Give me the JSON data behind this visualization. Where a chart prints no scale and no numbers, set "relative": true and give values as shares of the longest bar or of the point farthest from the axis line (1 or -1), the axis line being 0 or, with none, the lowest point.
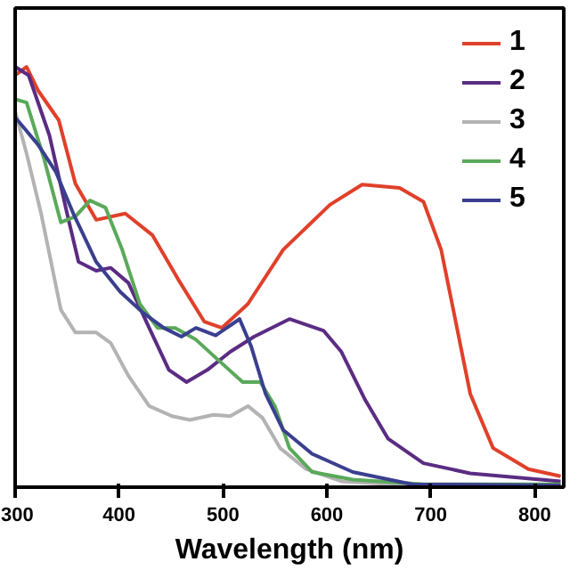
{
  "chart_data": {
    "type": "line",
    "xlabel": "Wavelength (nm)",
    "relative": true,
    "xlim": [
      300,
      828
    ],
    "xticks": [
      300,
      400,
      500,
      600,
      700,
      800
    ],
    "legend": "top right",
    "line_style": "solid",
    "grid": false,
    "series": [
      {
        "name": "1",
        "color": "#e0402a",
        "x": [
          300,
          311,
          322,
          342,
          358,
          378,
          406,
          432,
          457,
          482,
          499,
          524,
          558,
          603,
          634,
          670,
          693,
          710,
          724,
          738,
          760,
          794,
          825
        ],
        "values": [
          0.98,
          1.0,
          0.944,
          0.873,
          0.722,
          0.636,
          0.651,
          0.6,
          0.494,
          0.394,
          0.379,
          0.436,
          0.565,
          0.672,
          0.72,
          0.712,
          0.679,
          0.565,
          0.394,
          0.222,
          0.093,
          0.043,
          0.026
        ]
      },
      {
        "name": "2",
        "color": "#5b2c83",
        "x": [
          300,
          313,
          333,
          350,
          361,
          378,
          392,
          409,
          429,
          448,
          465,
          485,
          507,
          530,
          564,
          597,
          614,
          637,
          659,
          693,
          738,
          825
        ],
        "values": [
          1.0,
          0.98,
          0.837,
          0.651,
          0.536,
          0.515,
          0.522,
          0.486,
          0.379,
          0.279,
          0.25,
          0.279,
          0.322,
          0.358,
          0.4,
          0.372,
          0.322,
          0.207,
          0.115,
          0.057,
          0.033,
          0.014
        ]
      },
      {
        "name": "3",
        "color": "#b3b3b3",
        "x": [
          300,
          311,
          325,
          344,
          358,
          378,
          392,
          409,
          429,
          451,
          468,
          491,
          507,
          524,
          538,
          555,
          580,
          614,
          681,
          825
        ],
        "values": [
          0.894,
          0.794,
          0.651,
          0.422,
          0.368,
          0.368,
          0.343,
          0.265,
          0.193,
          0.169,
          0.16,
          0.172,
          0.169,
          0.193,
          0.165,
          0.093,
          0.043,
          0.014,
          0.004,
          0.0
        ]
      },
      {
        "name": "4",
        "color": "#5aa95a",
        "x": [
          300,
          311,
          328,
          344,
          358,
          372,
          387,
          403,
          420,
          437,
          454,
          474,
          493,
          519,
          536,
          550,
          564,
          586,
          625,
          693,
          825
        ],
        "values": [
          0.923,
          0.915,
          0.78,
          0.63,
          0.644,
          0.682,
          0.665,
          0.565,
          0.436,
          0.379,
          0.379,
          0.351,
          0.308,
          0.25,
          0.25,
          0.193,
          0.093,
          0.036,
          0.018,
          0.007,
          0.007
        ]
      },
      {
        "name": "5",
        "color": "#3a3f8f",
        "x": [
          300,
          322,
          339,
          356,
          378,
          401,
          423,
          443,
          460,
          474,
          493,
          516,
          527,
          541,
          558,
          586,
          625,
          682,
          825
        ],
        "values": [
          0.88,
          0.815,
          0.751,
          0.651,
          0.536,
          0.465,
          0.415,
          0.379,
          0.358,
          0.379,
          0.361,
          0.4,
          0.336,
          0.222,
          0.136,
          0.079,
          0.036,
          0.007,
          0.004
        ]
      }
    ]
  }
}
